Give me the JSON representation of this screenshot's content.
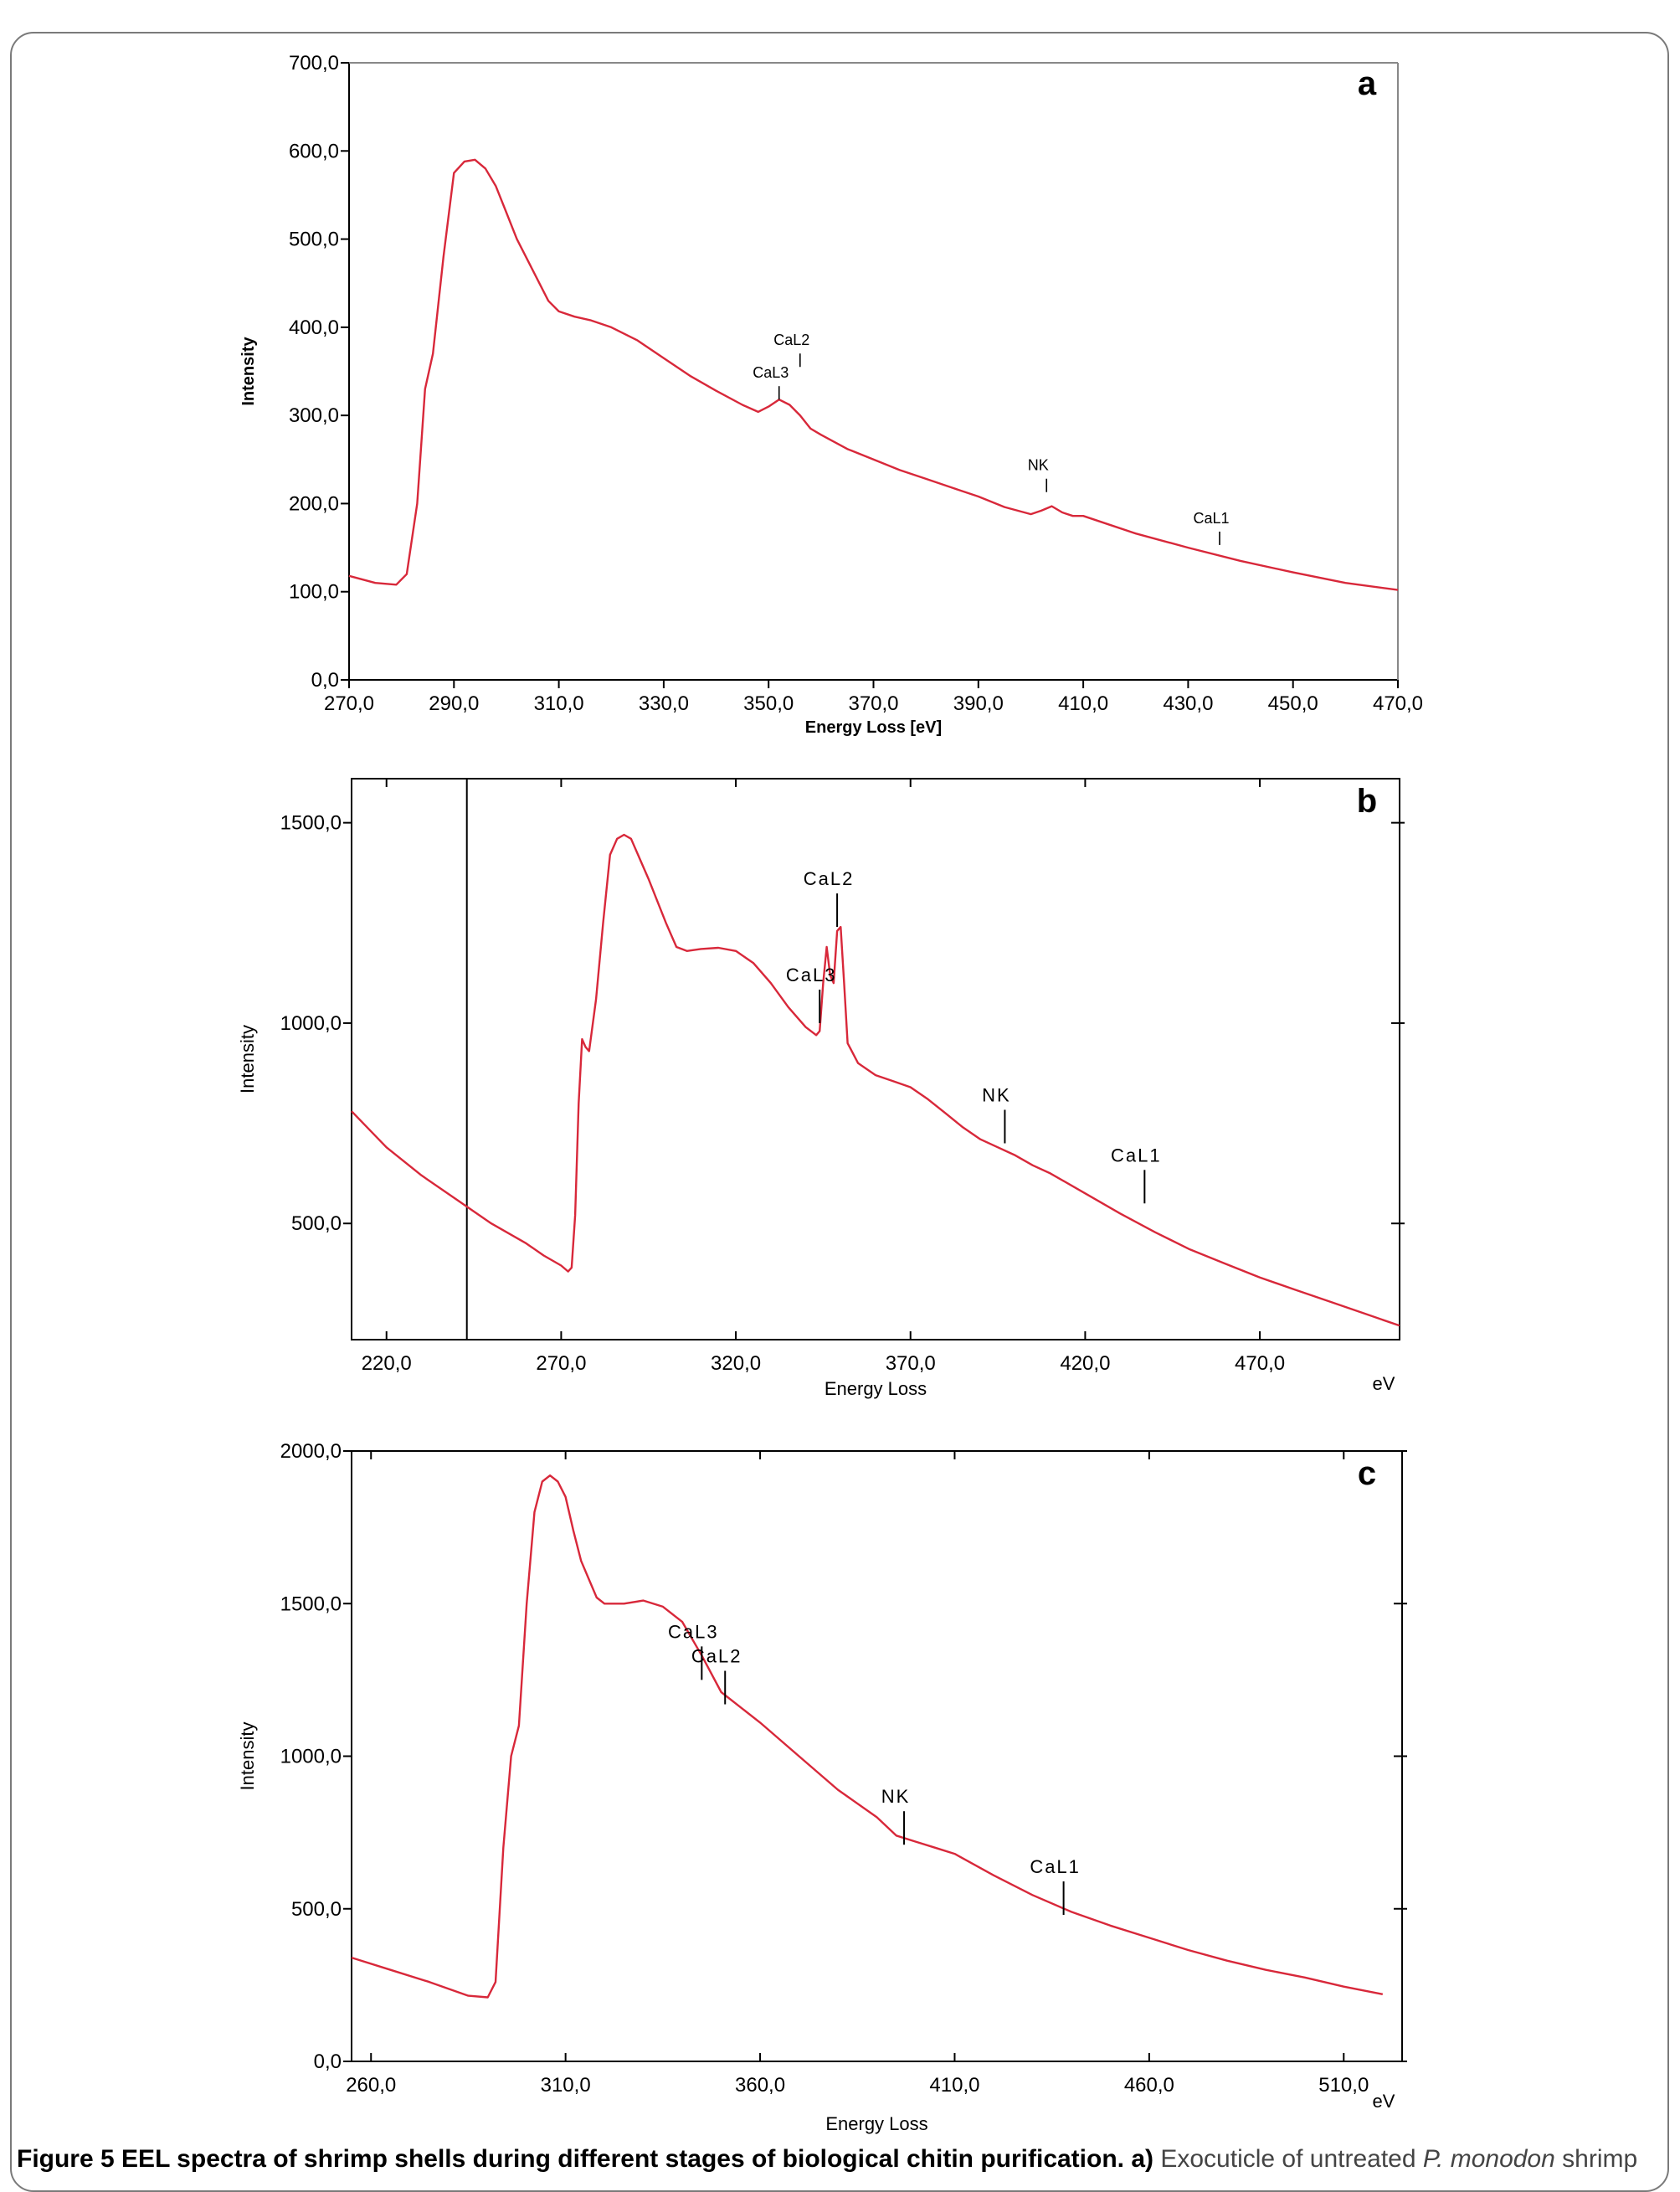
{
  "caption": {
    "label": "Figure 5",
    "title": "EEL spectra of shrimp shells during different stages of biological chitin purification.",
    "part_a": "a)",
    "text": " Exocuticle of untreated ",
    "species": "P. monodon",
    "tail": " shrimp"
  },
  "chart_data": [
    {
      "type": "line",
      "panel": "a",
      "xlabel": "Energy Loss [eV]",
      "ylabel": "Intensity",
      "xlim": [
        270,
        470
      ],
      "ylim": [
        0,
        700
      ],
      "xticks": [
        270,
        290,
        310,
        330,
        350,
        370,
        390,
        410,
        430,
        450,
        470
      ],
      "xtick_labels": [
        "270,0",
        "290,0",
        "310,0",
        "330,0",
        "350,0",
        "370,0",
        "390,0",
        "410,0",
        "430,0",
        "450,0",
        "470,0"
      ],
      "yticks": [
        0,
        100,
        200,
        300,
        400,
        500,
        600,
        700
      ],
      "ytick_labels": [
        "0,0",
        "100,0",
        "200,0",
        "300,0",
        "400,0",
        "500,0",
        "600,0",
        "700,0"
      ],
      "grid": false,
      "series": [
        {
          "color": "#d8283a",
          "x": [
            270,
            275,
            279,
            281,
            283,
            284.5,
            286,
            288,
            290,
            292,
            294,
            296,
            298,
            300,
            302,
            305,
            308,
            310,
            313,
            316,
            320,
            325,
            330,
            335,
            340,
            345,
            348,
            350,
            352,
            354,
            356,
            358,
            360,
            365,
            370,
            375,
            380,
            385,
            390,
            395,
            400,
            402,
            404,
            406,
            408,
            410,
            415,
            420,
            430,
            440,
            450,
            460,
            470
          ],
          "y": [
            118,
            110,
            108,
            120,
            200,
            330,
            370,
            480,
            575,
            588,
            590,
            580,
            560,
            530,
            500,
            465,
            430,
            418,
            412,
            408,
            400,
            385,
            365,
            345,
            328,
            312,
            304,
            310,
            318,
            312,
            300,
            285,
            278,
            262,
            250,
            238,
            228,
            218,
            208,
            196,
            188,
            192,
            197,
            190,
            186,
            186,
            176,
            166,
            150,
            135,
            122,
            110,
            102
          ]
        }
      ],
      "annotations": [
        {
          "label": "CaL3",
          "x": 352,
          "y": 318
        },
        {
          "label": "CaL2",
          "x": 356,
          "y": 355
        },
        {
          "label": "NK",
          "x": 403,
          "y": 213
        },
        {
          "label": "CaL1",
          "x": 436,
          "y": 153
        }
      ]
    },
    {
      "type": "line",
      "panel": "b",
      "xlabel": "Energy Loss",
      "ylabel": "Intensity",
      "x_unit": "eV",
      "xlim": [
        210,
        510
      ],
      "ylim": [
        210,
        1610
      ],
      "xticks": [
        220,
        270,
        320,
        370,
        420,
        470
      ],
      "xtick_labels": [
        "220,0",
        "270,0",
        "320,0",
        "370,0",
        "420,0",
        "470,0"
      ],
      "yticks": [
        500,
        1000,
        1500
      ],
      "ytick_labels": [
        "500,0",
        "1000,0",
        "1500,0"
      ],
      "grid": false,
      "marker_x": 243,
      "series": [
        {
          "color": "#d8283a",
          "x": [
            210,
            220,
            230,
            240,
            250,
            260,
            265,
            270,
            272,
            273,
            274,
            275,
            276,
            277,
            278,
            280,
            282,
            284,
            286,
            288,
            290,
            292,
            295,
            300,
            303,
            306,
            310,
            315,
            320,
            325,
            330,
            335,
            340,
            343,
            344,
            345,
            346,
            347,
            348,
            349,
            350,
            351,
            352,
            355,
            360,
            365,
            370,
            375,
            380,
            385,
            390,
            395,
            400,
            405,
            410,
            420,
            430,
            440,
            450,
            460,
            470,
            480,
            490,
            500,
            510
          ],
          "y": [
            780,
            690,
            620,
            560,
            500,
            450,
            420,
            395,
            380,
            390,
            520,
            800,
            960,
            940,
            930,
            1060,
            1250,
            1420,
            1460,
            1470,
            1460,
            1420,
            1360,
            1250,
            1190,
            1180,
            1185,
            1188,
            1180,
            1150,
            1100,
            1040,
            990,
            970,
            980,
            1100,
            1190,
            1120,
            1100,
            1230,
            1240,
            1100,
            950,
            900,
            870,
            855,
            840,
            810,
            775,
            740,
            710,
            690,
            670,
            645,
            625,
            575,
            525,
            478,
            435,
            400,
            365,
            335,
            305,
            275,
            245
          ]
        }
      ],
      "annotations": [
        {
          "label": "CaL3",
          "x": 344,
          "y": 1000
        },
        {
          "label": "CaL2",
          "x": 349,
          "y": 1240
        },
        {
          "label": "NK",
          "x": 397,
          "y": 700
        },
        {
          "label": "CaL1",
          "x": 437,
          "y": 550
        }
      ]
    },
    {
      "type": "line",
      "panel": "c",
      "xlabel": "Energy Loss",
      "ylabel": "Intensity",
      "x_unit": "eV",
      "xlim": [
        255,
        525
      ],
      "ylim": [
        0,
        2000
      ],
      "xticks": [
        260,
        310,
        360,
        410,
        460,
        510
      ],
      "xtick_labels": [
        "260,0",
        "310,0",
        "360,0",
        "410,0",
        "460,0",
        "510,0"
      ],
      "yticks": [
        0,
        500,
        1000,
        1500,
        2000
      ],
      "ytick_labels": [
        "0,0",
        "500,0",
        "1000,0",
        "1500,0",
        "2000,0"
      ],
      "grid": false,
      "series": [
        {
          "color": "#d8283a",
          "x": [
            255,
            265,
            275,
            285,
            290,
            292,
            294,
            296,
            298,
            300,
            302,
            304,
            306,
            308,
            310,
            312,
            314,
            316,
            318,
            320,
            325,
            330,
            335,
            340,
            345,
            350,
            360,
            370,
            380,
            390,
            395,
            400,
            405,
            410,
            420,
            430,
            440,
            450,
            460,
            470,
            480,
            490,
            500,
            510,
            520
          ],
          "y": [
            340,
            300,
            260,
            215,
            210,
            260,
            700,
            1000,
            1100,
            1500,
            1800,
            1900,
            1920,
            1900,
            1850,
            1740,
            1640,
            1580,
            1520,
            1500,
            1500,
            1510,
            1490,
            1440,
            1330,
            1210,
            1110,
            1000,
            890,
            800,
            740,
            720,
            700,
            680,
            610,
            545,
            490,
            445,
            405,
            365,
            330,
            300,
            275,
            245,
            220
          ]
        }
      ],
      "annotations": [
        {
          "label": "CaL3",
          "x": 345,
          "y": 1250
        },
        {
          "label": "CaL2",
          "x": 351,
          "y": 1170
        },
        {
          "label": "NK",
          "x": 397,
          "y": 710
        },
        {
          "label": "CaL1",
          "x": 438,
          "y": 480
        }
      ]
    }
  ]
}
